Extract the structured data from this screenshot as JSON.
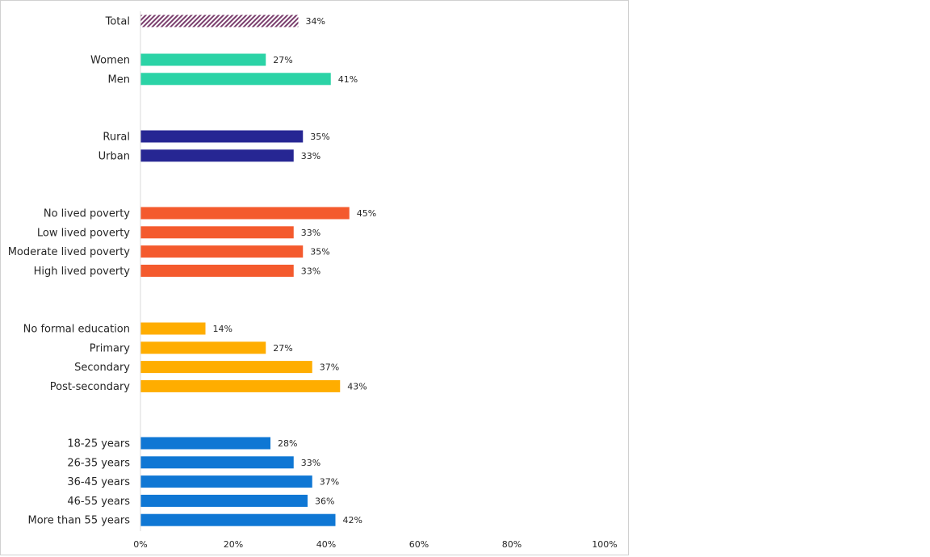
{
  "chart_data": {
    "type": "bar",
    "orientation": "horizontal",
    "xlim": [
      0,
      100
    ],
    "x_ticks": [
      "0%",
      "20%",
      "40%",
      "60%",
      "80%",
      "100%"
    ],
    "grid": false,
    "legend": "none",
    "groups": [
      {
        "color": "#7b3f6e",
        "pattern": "diagonal-hatch",
        "categories": [
          "Total"
        ],
        "values": [
          34
        ]
      },
      {
        "color": "#2bd3a6",
        "categories": [
          "Women",
          "Men"
        ],
        "values": [
          27,
          41
        ]
      },
      {
        "color": "#262693",
        "categories": [
          "Rural",
          "Urban"
        ],
        "values": [
          35,
          33
        ]
      },
      {
        "color": "#f45a2d",
        "categories": [
          "No lived poverty",
          "Low lived poverty",
          "Moderate lived poverty",
          "High lived poverty"
        ],
        "values": [
          45,
          33,
          35,
          33
        ]
      },
      {
        "color": "#ffad00",
        "categories": [
          "No formal education",
          "Primary",
          "Secondary",
          "Post-secondary"
        ],
        "values": [
          14,
          27,
          37,
          43
        ]
      },
      {
        "color": "#0f77d4",
        "categories": [
          "18-25 years",
          "26-35 years",
          "36-45 years",
          "46-55 years",
          "More than 55 years"
        ],
        "values": [
          28,
          33,
          37,
          36,
          42
        ]
      }
    ],
    "value_suffix": "%"
  }
}
